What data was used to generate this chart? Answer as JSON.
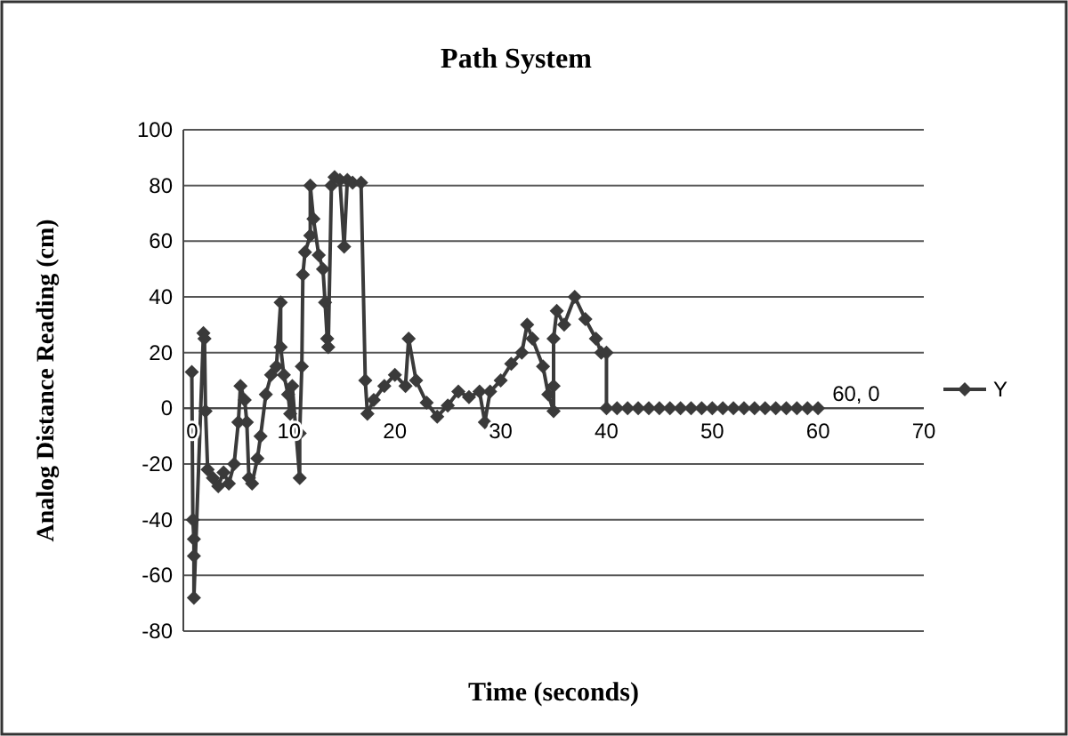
{
  "chart_data": {
    "type": "line",
    "title": "Path System",
    "xlabel": "Time (seconds)",
    "ylabel": "Analog Distance Reading (cm)",
    "xlim": [
      0,
      70
    ],
    "xticks": [
      0,
      10,
      20,
      30,
      40,
      50,
      60,
      70
    ],
    "ylim": [
      -80,
      100
    ],
    "yticks": [
      -80,
      -60,
      -40,
      -20,
      0,
      20,
      40,
      60,
      80,
      100
    ],
    "grid": "y",
    "legend": "right",
    "marker": "diamond",
    "line_style": "solid",
    "annotations": [
      {
        "text": "60, 0",
        "x": 60,
        "y": 0
      }
    ],
    "series": [
      {
        "name": "Y",
        "color": "#3a3a3a",
        "x": [
          0.8,
          0.9,
          1,
          1,
          1,
          1.9,
          2,
          2.1,
          2.3,
          2.8,
          3.3,
          3.8,
          4.3,
          4.8,
          5.2,
          5.4,
          5.8,
          6,
          6.2,
          6.5,
          7,
          7.3,
          7.8,
          8.3,
          8.8,
          9.2,
          9.2,
          9.5,
          9.9,
          10.1,
          10.3,
          11,
          11,
          11.2,
          11.3,
          11.5,
          12,
          12,
          12.3,
          12.8,
          13.2,
          13.4,
          13.6,
          13.7,
          14,
          14.3,
          14.8,
          15.2,
          15.5,
          16,
          16.8,
          17.2,
          17.4,
          18,
          19,
          20,
          21,
          21.3,
          22,
          23,
          24,
          25,
          26,
          27,
          28,
          28.5,
          29,
          30,
          31,
          32,
          32.5,
          33,
          34,
          34.5,
          35,
          35,
          35,
          35.3,
          36,
          37,
          38,
          39,
          39.5,
          40,
          40,
          41,
          42,
          43,
          44,
          45,
          46,
          47,
          48,
          49,
          50,
          51,
          52,
          53,
          54,
          55,
          56,
          57,
          58,
          59,
          60
        ],
        "values": [
          13,
          -40,
          -47,
          -53,
          -68,
          27,
          25,
          -1,
          -22,
          -25,
          -28,
          -23,
          -27,
          -20,
          -5,
          8,
          3,
          -5,
          -25,
          -27,
          -18,
          -10,
          5,
          12,
          15,
          38,
          22,
          12,
          5,
          -2,
          8,
          -25,
          -9,
          15,
          48,
          56,
          62,
          80,
          68,
          55,
          50,
          38,
          25,
          22,
          80,
          83,
          82,
          58,
          82,
          81,
          81,
          10,
          -2,
          3,
          8,
          12,
          8,
          25,
          10,
          2,
          -3,
          1,
          6,
          4,
          6,
          -5,
          6,
          10,
          16,
          20,
          30,
          25,
          15,
          5,
          -1,
          8,
          25,
          35,
          30,
          40,
          32,
          25,
          20,
          20,
          0,
          0,
          0,
          0,
          0,
          0,
          0,
          0,
          0,
          0,
          0,
          0,
          0,
          0,
          0,
          0,
          0,
          0,
          0,
          0,
          0
        ]
      }
    ]
  }
}
